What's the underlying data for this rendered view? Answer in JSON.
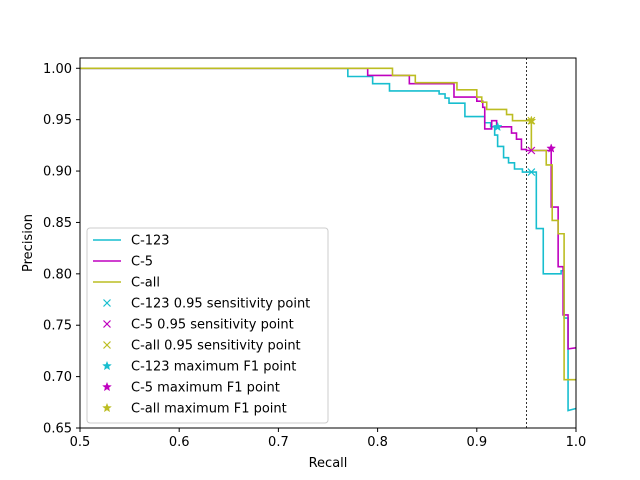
{
  "chart_data": {
    "type": "line",
    "title": "",
    "xlabel": "Recall",
    "ylabel": "Precision",
    "xlim": [
      0.5,
      1.0
    ],
    "ylim": [
      0.65,
      1.01
    ],
    "xticks": [
      0.5,
      0.6,
      0.7,
      0.8,
      0.9,
      1.0
    ],
    "yticks": [
      0.65,
      0.7,
      0.75,
      0.8,
      0.85,
      0.9,
      0.95,
      1.0
    ],
    "xtick_labels": [
      "0.5",
      "0.6",
      "0.7",
      "0.8",
      "0.9",
      "1.0"
    ],
    "ytick_labels": [
      "0.65",
      "0.70",
      "0.75",
      "0.80",
      "0.85",
      "0.90",
      "0.95",
      "1.00"
    ],
    "grid": false,
    "legend_position": "lower-left",
    "reference_line": {
      "x": 0.95,
      "style": "dashed",
      "color": "#000000"
    },
    "series": [
      {
        "name": "C-123",
        "color": "#17becf",
        "points": [
          [
            0.5,
            1.0
          ],
          [
            0.77,
            1.0
          ],
          [
            0.77,
            0.992
          ],
          [
            0.795,
            0.992
          ],
          [
            0.795,
            0.985
          ],
          [
            0.812,
            0.985
          ],
          [
            0.812,
            0.978
          ],
          [
            0.862,
            0.978
          ],
          [
            0.862,
            0.975
          ],
          [
            0.868,
            0.975
          ],
          [
            0.868,
            0.971
          ],
          [
            0.872,
            0.971
          ],
          [
            0.872,
            0.966
          ],
          [
            0.888,
            0.966
          ],
          [
            0.888,
            0.953
          ],
          [
            0.908,
            0.953
          ],
          [
            0.908,
            0.947
          ],
          [
            0.914,
            0.947
          ],
          [
            0.914,
            0.943
          ],
          [
            0.918,
            0.943
          ],
          [
            0.918,
            0.935
          ],
          [
            0.921,
            0.935
          ],
          [
            0.921,
            0.924
          ],
          [
            0.927,
            0.924
          ],
          [
            0.927,
            0.913
          ],
          [
            0.932,
            0.913
          ],
          [
            0.932,
            0.908
          ],
          [
            0.938,
            0.908
          ],
          [
            0.938,
            0.902
          ],
          [
            0.946,
            0.902
          ],
          [
            0.946,
            0.899
          ],
          [
            0.96,
            0.899
          ],
          [
            0.96,
            0.844
          ],
          [
            0.967,
            0.844
          ],
          [
            0.967,
            0.8
          ],
          [
            0.985,
            0.8
          ],
          [
            0.985,
            0.803
          ],
          [
            0.988,
            0.803
          ],
          [
            0.988,
            0.757
          ],
          [
            0.992,
            0.757
          ],
          [
            0.992,
            0.667
          ],
          [
            1.0,
            0.669
          ]
        ]
      },
      {
        "name": "C-5",
        "color": "#bf00bf",
        "points": [
          [
            0.5,
            1.0
          ],
          [
            0.79,
            1.0
          ],
          [
            0.79,
            0.993
          ],
          [
            0.832,
            0.993
          ],
          [
            0.832,
            0.985
          ],
          [
            0.877,
            0.985
          ],
          [
            0.877,
            0.972
          ],
          [
            0.9,
            0.972
          ],
          [
            0.9,
            0.968
          ],
          [
            0.906,
            0.968
          ],
          [
            0.906,
            0.962
          ],
          [
            0.908,
            0.962
          ],
          [
            0.908,
            0.941
          ],
          [
            0.915,
            0.941
          ],
          [
            0.915,
            0.949
          ],
          [
            0.92,
            0.949
          ],
          [
            0.92,
            0.943
          ],
          [
            0.935,
            0.943
          ],
          [
            0.935,
            0.937
          ],
          [
            0.94,
            0.937
          ],
          [
            0.94,
            0.931
          ],
          [
            0.945,
            0.931
          ],
          [
            0.945,
            0.921
          ],
          [
            0.95,
            0.921
          ],
          [
            0.95,
            0.92
          ],
          [
            0.975,
            0.92
          ],
          [
            0.975,
            0.865
          ],
          [
            0.982,
            0.865
          ],
          [
            0.982,
            0.807
          ],
          [
            0.987,
            0.807
          ],
          [
            0.987,
            0.76
          ],
          [
            0.992,
            0.76
          ],
          [
            0.992,
            0.727
          ],
          [
            1.0,
            0.728
          ]
        ]
      },
      {
        "name": "C-all",
        "color": "#bcbd22",
        "points": [
          [
            0.5,
            1.0
          ],
          [
            0.815,
            1.0
          ],
          [
            0.815,
            0.993
          ],
          [
            0.838,
            0.993
          ],
          [
            0.838,
            0.986
          ],
          [
            0.88,
            0.986
          ],
          [
            0.88,
            0.979
          ],
          [
            0.9,
            0.979
          ],
          [
            0.9,
            0.972
          ],
          [
            0.905,
            0.972
          ],
          [
            0.905,
            0.967
          ],
          [
            0.91,
            0.967
          ],
          [
            0.91,
            0.96
          ],
          [
            0.93,
            0.96
          ],
          [
            0.93,
            0.955
          ],
          [
            0.936,
            0.955
          ],
          [
            0.936,
            0.949
          ],
          [
            0.955,
            0.949
          ],
          [
            0.955,
            0.92
          ],
          [
            0.97,
            0.92
          ],
          [
            0.97,
            0.906
          ],
          [
            0.976,
            0.906
          ],
          [
            0.976,
            0.852
          ],
          [
            0.982,
            0.852
          ],
          [
            0.982,
            0.839
          ],
          [
            0.988,
            0.839
          ],
          [
            0.988,
            0.697
          ],
          [
            1.0,
            0.697
          ]
        ]
      }
    ],
    "markers": [
      {
        "name": "C-123 0.95 sensitivity point",
        "symbol": "x",
        "color": "#17becf",
        "x": 0.955,
        "y": 0.899
      },
      {
        "name": "C-5 0.95 sensitivity point",
        "symbol": "x",
        "color": "#bf00bf",
        "x": 0.955,
        "y": 0.92
      },
      {
        "name": "C-all 0.95 sensitivity point",
        "symbol": "x",
        "color": "#bcbd22",
        "x": 0.955,
        "y": 0.949
      },
      {
        "name": "C-123 maximum F1 point",
        "symbol": "star",
        "color": "#17becf",
        "x": 0.921,
        "y": 0.943
      },
      {
        "name": "C-5 maximum F1 point",
        "symbol": "star",
        "color": "#bf00bf",
        "x": 0.975,
        "y": 0.922
      },
      {
        "name": "C-all maximum F1 point",
        "symbol": "star",
        "color": "#bcbd22",
        "x": 0.955,
        "y": 0.949
      }
    ],
    "legend": [
      {
        "label": "C-123",
        "kind": "line",
        "color": "#17becf"
      },
      {
        "label": "C-5",
        "kind": "line",
        "color": "#bf00bf"
      },
      {
        "label": "C-all",
        "kind": "line",
        "color": "#bcbd22"
      },
      {
        "label": "C-123 0.95 sensitivity point",
        "kind": "x",
        "color": "#17becf"
      },
      {
        "label": "C-5 0.95 sensitivity point",
        "kind": "x",
        "color": "#bf00bf"
      },
      {
        "label": "C-all 0.95 sensitivity point",
        "kind": "x",
        "color": "#bcbd22"
      },
      {
        "label": "C-123 maximum F1 point",
        "kind": "star",
        "color": "#17becf"
      },
      {
        "label": "C-5 maximum F1 point",
        "kind": "star",
        "color": "#bf00bf"
      },
      {
        "label": "C-all maximum F1 point",
        "kind": "star",
        "color": "#bcbd22"
      }
    ]
  }
}
